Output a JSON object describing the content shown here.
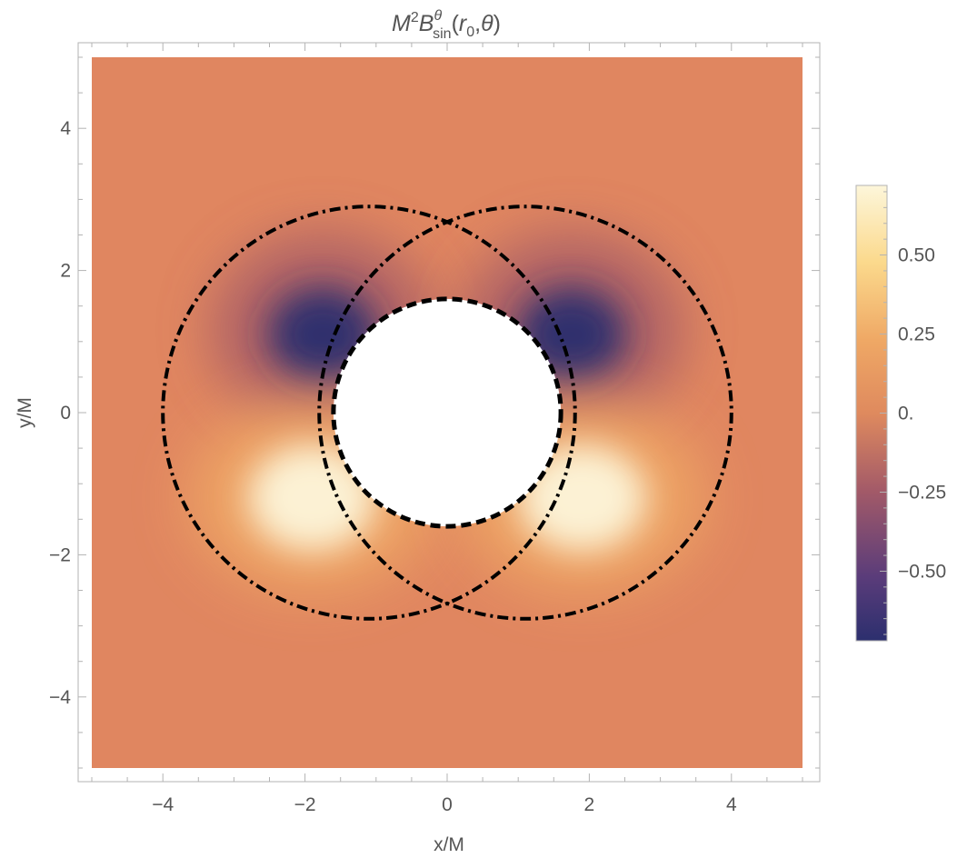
{
  "chart_data": {
    "type": "heatmap",
    "title": {
      "base": "M",
      "base_sup": "2",
      "symbol": "B",
      "symbol_sup": "θ",
      "symbol_sub": "sin",
      "args_open": "(",
      "arg1": "r",
      "arg1_sub": "0",
      "args_sep": ",",
      "arg2": "θ",
      "args_close": ")"
    },
    "xlabel": "x/M",
    "ylabel": "y/M",
    "xlim": [
      -5,
      5
    ],
    "ylim": [
      -5,
      5
    ],
    "x_ticks": [
      -4,
      -2,
      0,
      2,
      4
    ],
    "x_tick_labels": [
      "−4",
      "−2",
      "0",
      "2",
      "4"
    ],
    "y_ticks": [
      -4,
      -2,
      0,
      2,
      4
    ],
    "y_tick_labels": [
      "−4",
      "−2",
      "0",
      "2",
      "4"
    ],
    "grid": false,
    "colorbar": {
      "range": [
        -0.72,
        0.72
      ],
      "ticks": [
        0.5,
        0.25,
        0,
        -0.25,
        -0.5
      ],
      "tick_labels": [
        "0.50",
        "0.25",
        "0.",
        "−0.25",
        "−0.50"
      ],
      "colormap": [
        "#2c2f6e",
        "#5a3c7a",
        "#a35a68",
        "#df8a5e",
        "#efa865",
        "#fbd98c",
        "#fdf6da"
      ]
    },
    "features": {
      "hole_radius": 1.6,
      "field_extrema": {
        "negative": [
          [
            -1.75,
            1.1
          ],
          [
            1.75,
            1.1
          ]
        ],
        "positive": [
          [
            -1.9,
            -1.2
          ],
          [
            1.9,
            -1.2
          ]
        ]
      },
      "dashed_circle": {
        "center": [
          0,
          0
        ],
        "radius": 1.6,
        "style": "dashed"
      },
      "dashdot_circles": [
        {
          "center": [
            -1.1,
            0
          ],
          "radius": 2.9,
          "style": "dash-dot"
        },
        {
          "center": [
            1.1,
            0
          ],
          "radius": 2.9,
          "style": "dash-dot"
        }
      ]
    }
  }
}
